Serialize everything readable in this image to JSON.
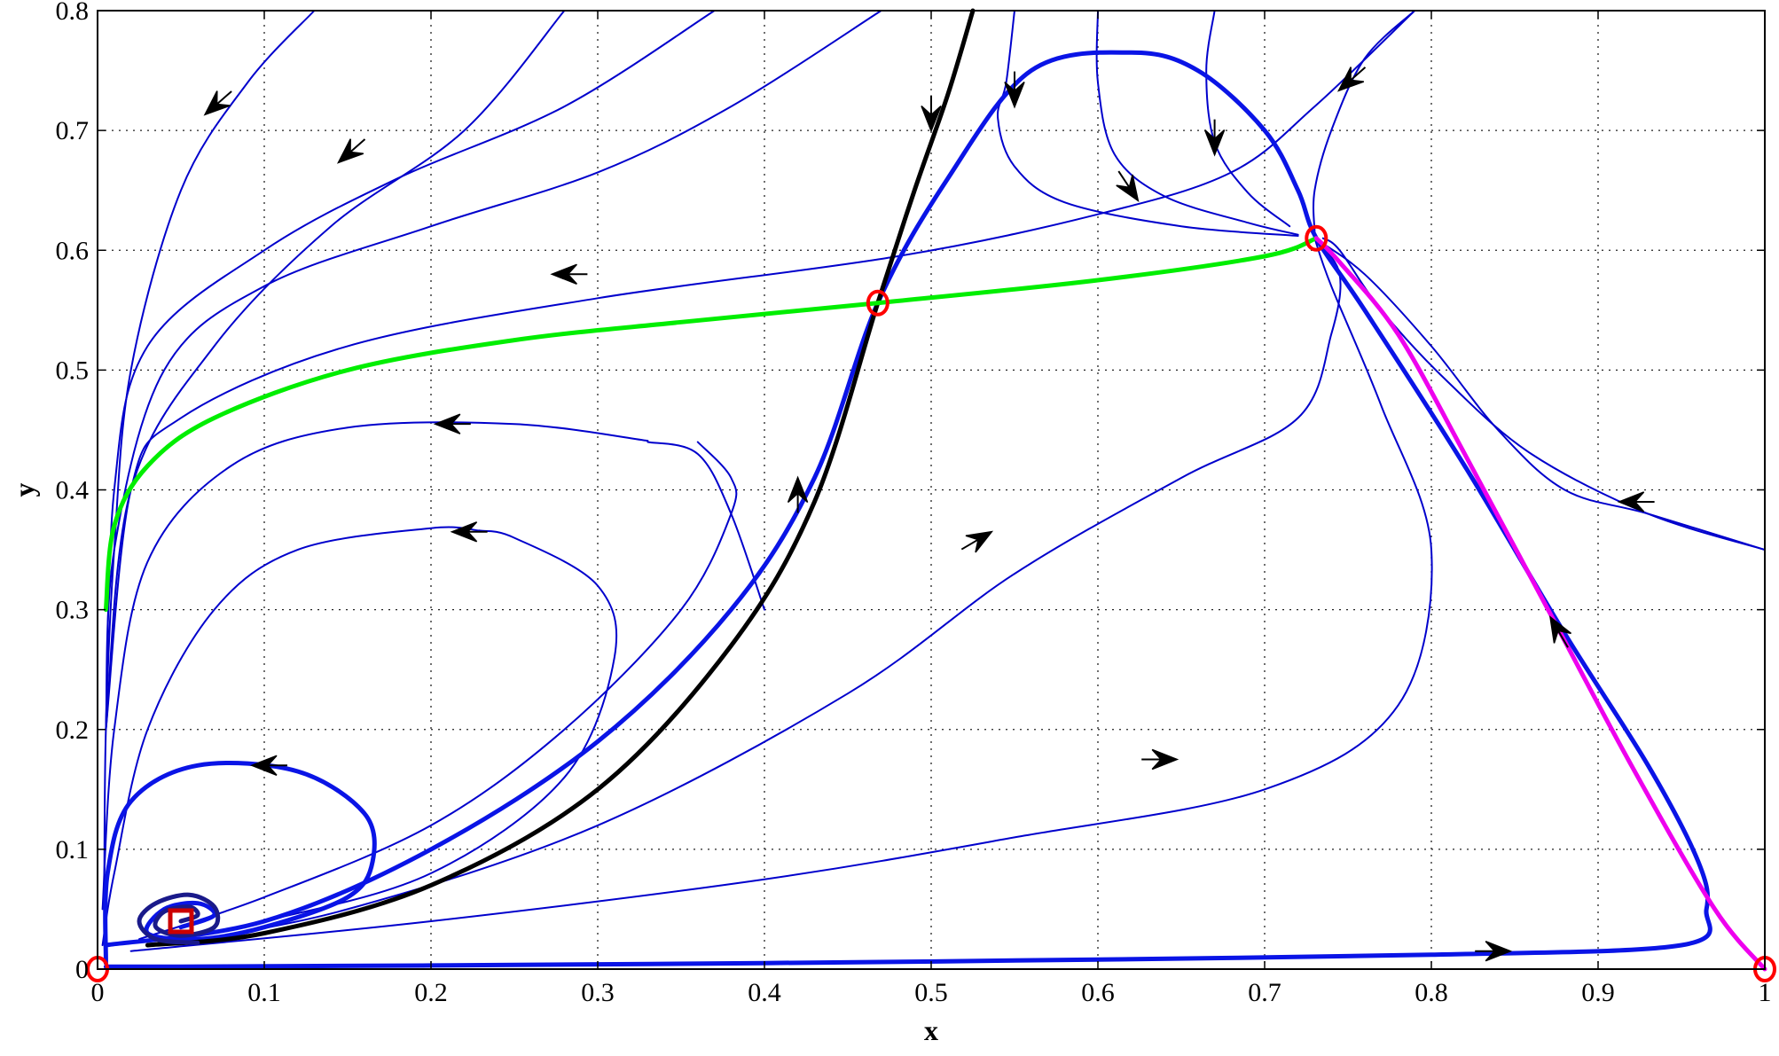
{
  "chart_data": {
    "type": "line",
    "title": "",
    "xlabel": "x",
    "ylabel": "y",
    "xlim": [
      0,
      1
    ],
    "ylim": [
      0,
      0.8
    ],
    "xticks": [
      0,
      0.1,
      0.2,
      0.3,
      0.4,
      0.5,
      0.6,
      0.7,
      0.8,
      0.9,
      1
    ],
    "xtick_labels": [
      "0",
      "0.1",
      "0.2",
      "0.3",
      "0.4",
      "0.5",
      "0.6",
      "0.7",
      "0.8",
      "0.9",
      "1"
    ],
    "yticks": [
      0,
      0.1,
      0.2,
      0.3,
      0.4,
      0.5,
      0.6,
      0.7,
      0.8
    ],
    "ytick_labels": [
      "0",
      "0.1",
      "0.2",
      "0.3",
      "0.4",
      "0.5",
      "0.6",
      "0.7",
      "0.8"
    ],
    "grid": true,
    "grid_style": "dotted",
    "colors": {
      "trajectory": "#0000cc",
      "separatrix": "#0a14e6",
      "stable_manifold": "#000000",
      "heteroclinic": "#00ee00",
      "magenta_orbit": "#ee00ee",
      "equilibrium": "#ff0000",
      "spiral_core": "#1a1a8a"
    },
    "equilibria": [
      {
        "x": 0,
        "y": 0,
        "kind": "circle"
      },
      {
        "x": 1,
        "y": 0,
        "kind": "circle"
      },
      {
        "x": 0.468,
        "y": 0.556,
        "kind": "circle"
      },
      {
        "x": 0.731,
        "y": 0.61,
        "kind": "circle"
      },
      {
        "x": 0.05,
        "y": 0.04,
        "kind": "square"
      }
    ],
    "series": [
      {
        "color": "blue",
        "width": "thin",
        "points": [
          [
            0.13,
            0.8
          ],
          [
            0.09,
            0.74
          ],
          [
            0.05,
            0.65
          ],
          [
            0.02,
            0.5
          ],
          [
            0.01,
            0.35
          ],
          [
            0.005,
            0.2
          ],
          [
            0.004,
            0.05
          ]
        ]
      },
      {
        "color": "blue",
        "width": "thin",
        "points": [
          [
            0.28,
            0.8
          ],
          [
            0.22,
            0.7
          ],
          [
            0.14,
            0.62
          ],
          [
            0.07,
            0.52
          ],
          [
            0.02,
            0.4
          ],
          [
            0.005,
            0.2
          ]
        ]
      },
      {
        "color": "blue",
        "width": "thin",
        "points": [
          [
            0.37,
            0.8
          ],
          [
            0.28,
            0.72
          ],
          [
            0.18,
            0.66
          ],
          [
            0.1,
            0.6
          ],
          [
            0.03,
            0.52
          ],
          [
            0.01,
            0.4
          ],
          [
            0.005,
            0.2
          ]
        ]
      },
      {
        "color": "blue",
        "width": "thin",
        "points": [
          [
            0.47,
            0.8
          ],
          [
            0.38,
            0.72
          ],
          [
            0.3,
            0.665
          ],
          [
            0.2,
            0.62
          ],
          [
            0.1,
            0.57
          ],
          [
            0.04,
            0.5
          ],
          [
            0.01,
            0.35
          ],
          [
            0.005,
            0.2
          ]
        ]
      },
      {
        "color": "blue",
        "width": "thin",
        "points": [
          [
            0.79,
            0.8
          ],
          [
            0.73,
            0.72
          ],
          [
            0.68,
            0.665
          ],
          [
            0.6,
            0.63
          ],
          [
            0.48,
            0.595
          ],
          [
            0.3,
            0.56
          ],
          [
            0.15,
            0.52
          ],
          [
            0.05,
            0.46
          ],
          [
            0.02,
            0.4
          ],
          [
            0.005,
            0.2
          ]
        ]
      },
      {
        "color": "blue",
        "width": "thin",
        "points": [
          [
            0.33,
            0.441
          ],
          [
            0.25,
            0.455
          ],
          [
            0.15,
            0.452
          ],
          [
            0.08,
            0.42
          ],
          [
            0.03,
            0.34
          ],
          [
            0.01,
            0.2
          ],
          [
            0.003,
            0.05
          ]
        ]
      },
      {
        "color": "blue",
        "width": "thin",
        "points": [
          [
            0.229,
            0.366
          ],
          [
            0.2,
            0.368
          ],
          [
            0.12,
            0.35
          ],
          [
            0.07,
            0.3
          ],
          [
            0.03,
            0.2
          ],
          [
            0.01,
            0.08
          ],
          [
            0.003,
            0.02
          ]
        ]
      },
      {
        "color": "blue",
        "width": "thin",
        "points": [
          [
            0.55,
            0.8
          ],
          [
            0.545,
            0.74
          ],
          [
            0.54,
            0.71
          ],
          [
            0.55,
            0.67
          ],
          [
            0.58,
            0.64
          ],
          [
            0.65,
            0.62
          ],
          [
            0.72,
            0.612
          ]
        ]
      },
      {
        "color": "blue",
        "width": "thin",
        "points": [
          [
            0.6,
            0.8
          ],
          [
            0.6,
            0.74
          ],
          [
            0.61,
            0.68
          ],
          [
            0.64,
            0.645
          ],
          [
            0.69,
            0.623
          ],
          [
            0.72,
            0.613
          ]
        ]
      },
      {
        "color": "blue",
        "width": "thin",
        "points": [
          [
            0.67,
            0.8
          ],
          [
            0.665,
            0.75
          ],
          [
            0.67,
            0.69
          ],
          [
            0.69,
            0.648
          ],
          [
            0.715,
            0.62
          ]
        ]
      },
      {
        "color": "blue",
        "width": "thin",
        "points": [
          [
            0.79,
            0.8
          ],
          [
            0.76,
            0.76
          ],
          [
            0.74,
            0.7
          ],
          [
            0.73,
            0.65
          ],
          [
            0.73,
            0.615
          ]
        ]
      },
      {
        "color": "blue",
        "width": "thin",
        "points": [
          [
            1.0,
            0.35
          ],
          [
            0.93,
            0.38
          ],
          [
            0.86,
            0.43
          ],
          [
            0.81,
            0.49
          ],
          [
            0.77,
            0.55
          ],
          [
            0.745,
            0.6
          ],
          [
            0.735,
            0.61
          ]
        ]
      },
      {
        "color": "blue",
        "width": "thin",
        "points": [
          [
            0.4,
            0.3
          ],
          [
            0.38,
            0.38
          ],
          [
            0.36,
            0.43
          ],
          [
            0.33,
            0.44
          ]
        ]
      },
      {
        "color": "blue",
        "width": "thin",
        "points": [
          [
            0.03,
            0.02
          ],
          [
            0.1,
            0.04
          ],
          [
            0.2,
            0.08
          ],
          [
            0.28,
            0.16
          ],
          [
            0.31,
            0.26
          ],
          [
            0.3,
            0.32
          ],
          [
            0.25,
            0.36
          ],
          [
            0.229,
            0.366
          ]
        ]
      },
      {
        "color": "blue",
        "width": "thin",
        "points": [
          [
            0.025,
            0.025
          ],
          [
            0.1,
            0.06
          ],
          [
            0.2,
            0.12
          ],
          [
            0.28,
            0.2
          ],
          [
            0.35,
            0.3
          ],
          [
            0.38,
            0.38
          ],
          [
            0.38,
            0.41
          ],
          [
            0.36,
            0.44
          ]
        ]
      },
      {
        "color": "blue",
        "width": "thin",
        "points": [
          [
            0.04,
            0.02
          ],
          [
            0.15,
            0.05
          ],
          [
            0.3,
            0.12
          ],
          [
            0.45,
            0.23
          ],
          [
            0.55,
            0.33
          ],
          [
            0.65,
            0.41
          ],
          [
            0.72,
            0.46
          ],
          [
            0.74,
            0.53
          ],
          [
            0.745,
            0.58
          ],
          [
            0.73,
            0.61
          ]
        ]
      },
      {
        "color": "blue",
        "width": "thin",
        "points": [
          [
            0.02,
            0.015
          ],
          [
            0.2,
            0.04
          ],
          [
            0.4,
            0.075
          ],
          [
            0.55,
            0.11
          ],
          [
            0.7,
            0.15
          ],
          [
            0.78,
            0.22
          ],
          [
            0.8,
            0.35
          ],
          [
            0.77,
            0.47
          ],
          [
            0.74,
            0.57
          ],
          [
            0.73,
            0.61
          ]
        ]
      },
      {
        "color": "blue",
        "width": "thin",
        "points": [
          [
            0.73,
            0.61
          ],
          [
            0.76,
            0.58
          ],
          [
            0.8,
            0.52
          ],
          [
            0.84,
            0.45
          ],
          [
            0.88,
            0.4
          ],
          [
            0.93,
            0.38
          ],
          [
            1.0,
            0.35
          ]
        ]
      },
      {
        "color": "blue",
        "width": "thick",
        "points": [
          [
            0.005,
            0.02
          ],
          [
            0.1,
            0.04
          ],
          [
            0.2,
            0.1
          ],
          [
            0.3,
            0.19
          ],
          [
            0.38,
            0.3
          ],
          [
            0.43,
            0.41
          ],
          [
            0.468,
            0.556
          ],
          [
            0.51,
            0.66
          ],
          [
            0.56,
            0.75
          ],
          [
            0.62,
            0.765
          ],
          [
            0.66,
            0.75
          ],
          [
            0.7,
            0.7
          ],
          [
            0.72,
            0.65
          ],
          [
            0.731,
            0.61
          ],
          [
            0.76,
            0.55
          ],
          [
            0.82,
            0.42
          ],
          [
            0.88,
            0.28
          ],
          [
            0.93,
            0.17
          ],
          [
            0.96,
            0.09
          ],
          [
            0.965,
            0.05
          ],
          [
            0.95,
            0.02
          ],
          [
            0.8,
            0.012
          ],
          [
            0.6,
            0.008
          ],
          [
            0.4,
            0.005
          ],
          [
            0.2,
            0.003
          ],
          [
            0.05,
            0.002
          ],
          [
            0.005,
            0.002
          ]
        ]
      },
      {
        "color": "blue",
        "width": "thick",
        "points": [
          [
            0.005,
            0.005
          ],
          [
            0.006,
            0.08
          ],
          [
            0.02,
            0.14
          ],
          [
            0.06,
            0.17
          ],
          [
            0.12,
            0.165
          ],
          [
            0.16,
            0.13
          ],
          [
            0.165,
            0.09
          ],
          [
            0.15,
            0.06
          ],
          [
            0.1,
            0.035
          ],
          [
            0.06,
            0.025
          ],
          [
            0.03,
            0.03
          ],
          [
            0.04,
            0.05
          ],
          [
            0.06,
            0.055
          ],
          [
            0.07,
            0.045
          ],
          [
            0.05,
            0.035
          ]
        ]
      },
      {
        "color": "black",
        "width": "thick",
        "points": [
          [
            0.03,
            0.02
          ],
          [
            0.1,
            0.03
          ],
          [
            0.2,
            0.07
          ],
          [
            0.3,
            0.15
          ],
          [
            0.38,
            0.27
          ],
          [
            0.43,
            0.39
          ],
          [
            0.468,
            0.556
          ],
          [
            0.49,
            0.65
          ],
          [
            0.51,
            0.73
          ],
          [
            0.525,
            0.8
          ]
        ]
      },
      {
        "color": "green",
        "width": "thick",
        "points": [
          [
            0.005,
            0.3
          ],
          [
            0.01,
            0.37
          ],
          [
            0.03,
            0.42
          ],
          [
            0.07,
            0.46
          ],
          [
            0.15,
            0.5
          ],
          [
            0.25,
            0.525
          ],
          [
            0.35,
            0.54
          ],
          [
            0.468,
            0.556
          ],
          [
            0.6,
            0.575
          ],
          [
            0.7,
            0.595
          ],
          [
            0.731,
            0.61
          ]
        ]
      },
      {
        "color": "magenta",
        "width": "thick",
        "points": [
          [
            1.0,
            0.0
          ],
          [
            0.97,
            0.05
          ],
          [
            0.92,
            0.17
          ],
          [
            0.87,
            0.3
          ],
          [
            0.82,
            0.43
          ],
          [
            0.78,
            0.53
          ],
          [
            0.745,
            0.59
          ],
          [
            0.731,
            0.61
          ]
        ]
      },
      {
        "color": "spiral",
        "width": "thick",
        "points": [
          [
            0.05,
            0.04
          ],
          [
            0.06,
            0.045
          ],
          [
            0.055,
            0.052
          ],
          [
            0.04,
            0.048
          ],
          [
            0.035,
            0.035
          ],
          [
            0.05,
            0.028
          ],
          [
            0.07,
            0.035
          ],
          [
            0.07,
            0.052
          ],
          [
            0.055,
            0.062
          ],
          [
            0.035,
            0.055
          ],
          [
            0.025,
            0.04
          ],
          [
            0.035,
            0.025
          ],
          [
            0.06,
            0.022
          ]
        ]
      }
    ],
    "arrows": [
      {
        "x": 0.07,
        "y": 0.72,
        "dir": "down-left"
      },
      {
        "x": 0.15,
        "y": 0.68,
        "dir": "down-left"
      },
      {
        "x": 0.28,
        "y": 0.58,
        "dir": "left"
      },
      {
        "x": 0.21,
        "y": 0.455,
        "dir": "left"
      },
      {
        "x": 0.22,
        "y": 0.365,
        "dir": "left"
      },
      {
        "x": 0.1,
        "y": 0.17,
        "dir": "left"
      },
      {
        "x": 0.5,
        "y": 0.71,
        "dir": "down"
      },
      {
        "x": 0.55,
        "y": 0.73,
        "dir": "down"
      },
      {
        "x": 0.62,
        "y": 0.65,
        "dir": "down-right"
      },
      {
        "x": 0.67,
        "y": 0.69,
        "dir": "down"
      },
      {
        "x": 0.75,
        "y": 0.74,
        "dir": "down-left"
      },
      {
        "x": 0.42,
        "y": 0.4,
        "dir": "up"
      },
      {
        "x": 0.53,
        "y": 0.36,
        "dir": "up-right"
      },
      {
        "x": 0.64,
        "y": 0.175,
        "dir": "right"
      },
      {
        "x": 0.84,
        "y": 0.015,
        "dir": "right"
      },
      {
        "x": 0.92,
        "y": 0.39,
        "dir": "left"
      },
      {
        "x": 0.875,
        "y": 0.285,
        "dir": "up-left"
      }
    ]
  }
}
